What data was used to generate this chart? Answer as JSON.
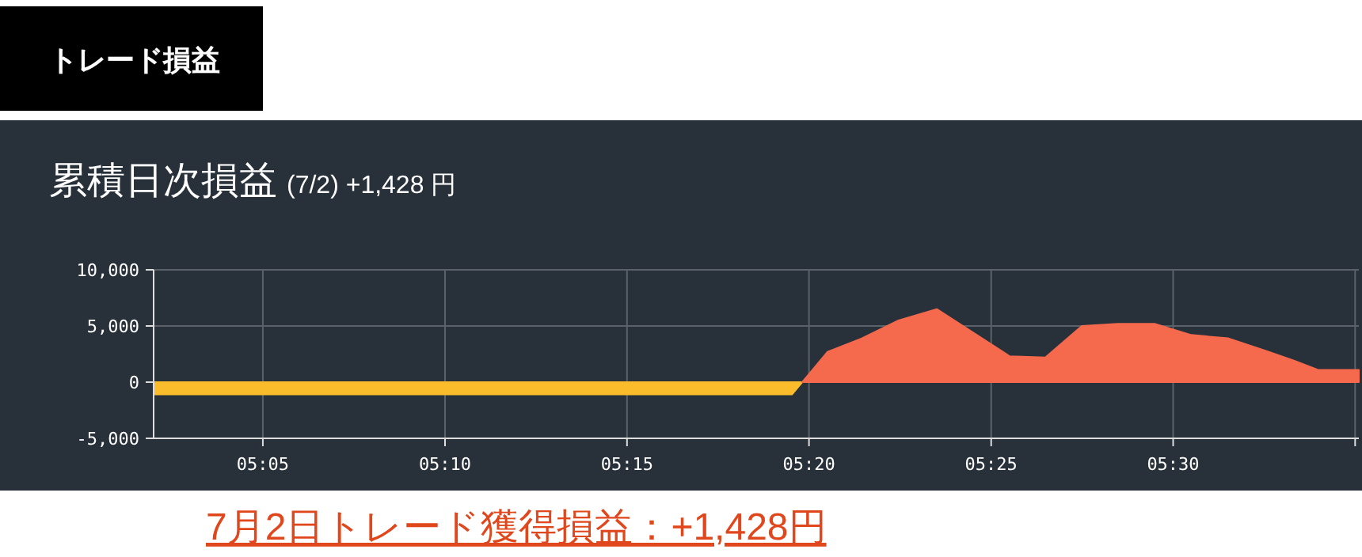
{
  "chart_data": {
    "type": "area",
    "title": "累積日次損益",
    "subtitle": "(7/2) +1,428 円",
    "annotations": [
      "トレード損益",
      "7月2日トレード獲得損益：+1,428円"
    ],
    "xlim": [
      5.0333,
      5.585
    ],
    "ylim": [
      -5000,
      10000
    ],
    "xticks": [
      {
        "value": 5.0833,
        "label": "05:05"
      },
      {
        "value": 5.1667,
        "label": "05:10"
      },
      {
        "value": 5.25,
        "label": "05:15"
      },
      {
        "value": 5.3333,
        "label": "05:20"
      },
      {
        "value": 5.4167,
        "label": "05:25"
      },
      {
        "value": 5.5,
        "label": "05:30"
      },
      {
        "value": 5.5833,
        "label": null
      }
    ],
    "yticks": [
      {
        "value": -5000,
        "label": "-5,000"
      },
      0,
      {
        "value": 5000,
        "label": "5,000"
      },
      {
        "value": 10000,
        "label": "10,000"
      }
    ],
    "grid": true,
    "series": [
      {
        "color": "#fbbc2c",
        "x": [
          5.0333,
          5.3255,
          5.3302
        ],
        "values": [
          -1100,
          -1100,
          0
        ]
      },
      {
        "color": "#f5694d",
        "x": [
          5.3302,
          5.3418,
          5.3575,
          5.3743,
          5.3918,
          5.4252,
          5.4415,
          5.4582,
          5.4747,
          5.4915,
          5.5083,
          5.5253,
          5.5422,
          5.5555,
          5.5663,
          5.585
        ],
        "values": [
          0,
          2700,
          3900,
          5500,
          6500,
          2300,
          2200,
          5000,
          5200,
          5200,
          4200,
          3900,
          2800,
          1900,
          1100,
          1100
        ]
      }
    ]
  }
}
